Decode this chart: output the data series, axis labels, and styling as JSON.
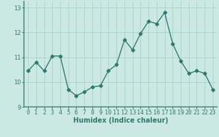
{
  "x": [
    0,
    1,
    2,
    3,
    4,
    5,
    6,
    7,
    8,
    9,
    10,
    11,
    12,
    13,
    14,
    15,
    16,
    17,
    18,
    19,
    20,
    21,
    22,
    23
  ],
  "y": [
    10.45,
    10.8,
    10.45,
    11.05,
    11.05,
    9.7,
    9.45,
    9.6,
    9.8,
    9.85,
    10.45,
    10.7,
    11.7,
    11.3,
    11.95,
    12.45,
    12.35,
    12.8,
    11.55,
    10.85,
    10.35,
    10.45,
    10.35,
    9.7
  ],
  "line_color": "#2d7a6e",
  "marker": "D",
  "marker_size": 2.5,
  "bg_color": "#cce8e2",
  "grid_color": "#aad4cc",
  "xlabel": "Humidex (Indice chaleur)",
  "ylim": [
    9.0,
    13.25
  ],
  "xlim": [
    -0.5,
    23.5
  ],
  "yticks": [
    9,
    10,
    11,
    12,
    13
  ],
  "xtick_labels": [
    "0",
    "1",
    "2",
    "3",
    "4",
    "5",
    "6",
    "7",
    "8",
    "9",
    "10",
    "11",
    "12",
    "13",
    "14",
    "15",
    "16",
    "17",
    "18",
    "19",
    "20",
    "21",
    "22",
    "23"
  ],
  "tick_color": "#2d7a6e",
  "label_fontsize": 7,
  "tick_fontsize": 6,
  "axis_color": "#2d7a6e",
  "spine_color": "#4a9080"
}
